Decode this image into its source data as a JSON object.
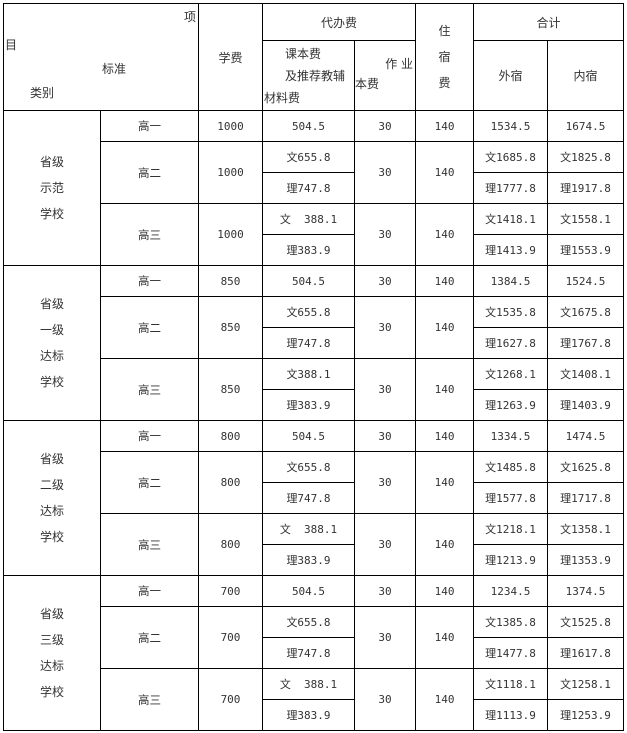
{
  "header": {
    "diag_item_1": "项",
    "diag_item_2": "目",
    "diag_standard": "标准",
    "diag_category": "类别",
    "tuition": "学费",
    "agency_fee": "代办费",
    "textbook_1": "课本费",
    "textbook_2": "及推荐教辅",
    "textbook_3": "材料费",
    "workbook_1": "作 业",
    "workbook_2": "本费",
    "dorm_1": "住",
    "dorm_2": "宿",
    "dorm_3": "费",
    "total": "合计",
    "out_dorm": "外宿",
    "in_dorm": "内宿"
  },
  "groups": [
    {
      "category": [
        "省级",
        "示范",
        "学校"
      ],
      "tuition": "1000",
      "g1": {
        "grade": "高一",
        "textbook": "504.5",
        "workbook": "30",
        "dorm": "140",
        "out": "1534.5",
        "in": "1674.5"
      },
      "g2": {
        "grade": "高二",
        "textbook": [
          "文655.8",
          "理747.8"
        ],
        "workbook": "30",
        "dorm": "140",
        "out": [
          "文1685.8",
          "理1777.8"
        ],
        "in": [
          "文1825.8",
          "理1917.8"
        ]
      },
      "g3": {
        "grade": "高三",
        "textbook": [
          "文  388.1",
          "理383.9"
        ],
        "workbook": "30",
        "dorm": "140",
        "out": [
          "文1418.1",
          "理1413.9"
        ],
        "in": [
          "文1558.1",
          "理1553.9"
        ]
      }
    },
    {
      "category": [
        "省级",
        "一级",
        "达标",
        "学校"
      ],
      "tuition": "850",
      "g1": {
        "grade": "高一",
        "textbook": "504.5",
        "workbook": "30",
        "dorm": "140",
        "out": "1384.5",
        "in": "1524.5"
      },
      "g2": {
        "grade": "高二",
        "textbook": [
          "文655.8",
          "理747.8"
        ],
        "workbook": "30",
        "dorm": "140",
        "out": [
          "文1535.8",
          "理1627.8"
        ],
        "in": [
          "文1675.8",
          "理1767.8"
        ]
      },
      "g3": {
        "grade": "高三",
        "textbook": [
          "文388.1",
          "理383.9"
        ],
        "workbook": "30",
        "dorm": "140",
        "out": [
          "文1268.1",
          "理1263.9"
        ],
        "in": [
          "文1408.1",
          "理1403.9"
        ]
      }
    },
    {
      "category": [
        "省级",
        "二级",
        "达标",
        "学校"
      ],
      "tuition": "800",
      "g1": {
        "grade": "高一",
        "textbook": "504.5",
        "workbook": "30",
        "dorm": "140",
        "out": "1334.5",
        "in": "1474.5"
      },
      "g2": {
        "grade": "高二",
        "textbook": [
          "文655.8",
          "理747.8"
        ],
        "workbook": "30",
        "dorm": "140",
        "out": [
          "文1485.8",
          "理1577.8"
        ],
        "in": [
          "文1625.8",
          "理1717.8"
        ]
      },
      "g3": {
        "grade": "高三",
        "textbook": [
          "文  388.1",
          "理383.9"
        ],
        "workbook": "30",
        "dorm": "140",
        "out": [
          "文1218.1",
          "理1213.9"
        ],
        "in": [
          "文1358.1",
          "理1353.9"
        ]
      }
    },
    {
      "category": [
        "省级",
        "三级",
        "达标",
        "学校"
      ],
      "tuition": "700",
      "g1": {
        "grade": "高一",
        "textbook": "504.5",
        "workbook": "30",
        "dorm": "140",
        "out": "1234.5",
        "in": "1374.5"
      },
      "g2": {
        "grade": "高二",
        "textbook": [
          "文655.8",
          "理747.8"
        ],
        "workbook": "30",
        "dorm": "140",
        "out": [
          "文1385.8",
          "理1477.8"
        ],
        "in": [
          "文1525.8",
          "理1617.8"
        ]
      },
      "g3": {
        "grade": "高三",
        "textbook": [
          "文  388.1",
          "理383.9"
        ],
        "workbook": "30",
        "dorm": "140",
        "out": [
          "文1118.1",
          "理1113.9"
        ],
        "in": [
          "文1258.1",
          "理1253.9"
        ]
      }
    }
  ]
}
